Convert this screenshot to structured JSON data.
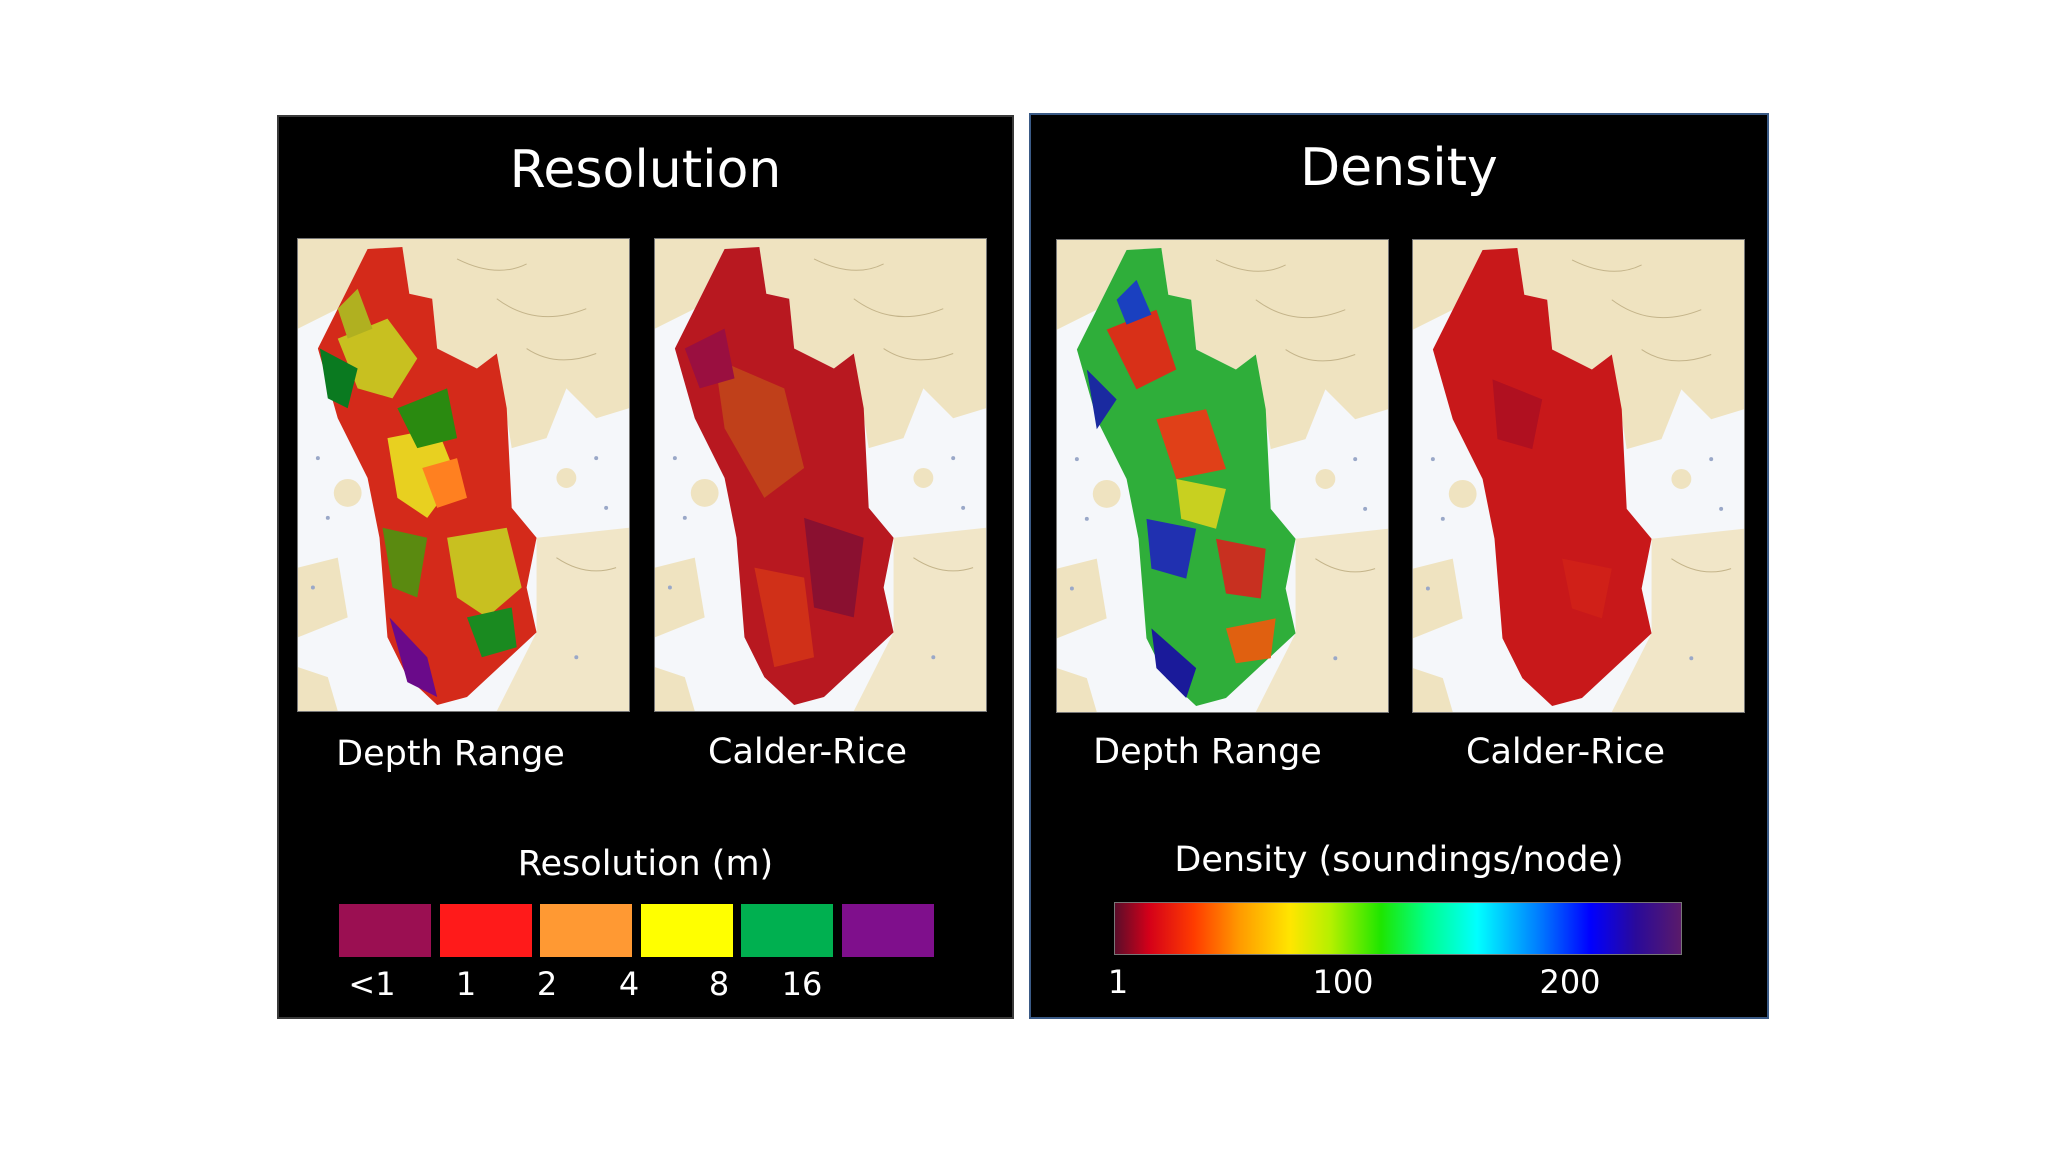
{
  "panels": {
    "resolution": {
      "title": "Resolution",
      "maps": [
        {
          "label": "Depth Range",
          "scheme": "resolution-depth-range"
        },
        {
          "label": "Calder-Rice",
          "scheme": "resolution-calder-rice"
        }
      ],
      "legend": {
        "title": "Resolution (m)",
        "swatch_colors": [
          "#9b0f52",
          "#ff1a1a",
          "#ff9933",
          "#ffff00",
          "#00b050",
          "#7f0f8c"
        ],
        "ticks": [
          "<1",
          "1",
          "2",
          "4",
          "8",
          "16"
        ]
      }
    },
    "density": {
      "title": "Density",
      "maps": [
        {
          "label": "Depth Range",
          "scheme": "density-depth-range"
        },
        {
          "label": "Calder-Rice",
          "scheme": "density-calder-rice"
        }
      ],
      "legend": {
        "title": "Density (soundings/node)",
        "ticks": [
          "1",
          "100",
          "200"
        ]
      }
    }
  }
}
